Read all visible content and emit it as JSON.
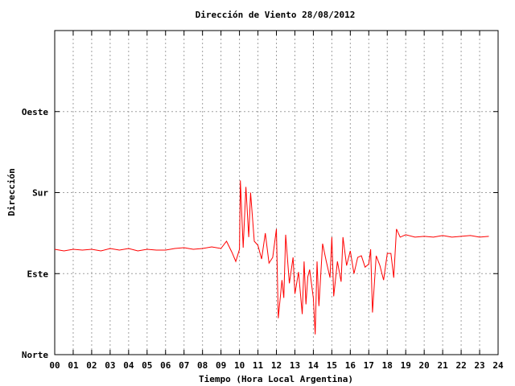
{
  "chart_data": {
    "type": "line",
    "title": "Dirección de Viento 28/08/2012",
    "xlabel": "Tiempo (Hora Local Argentina)",
    "ylabel": "Dirección",
    "xlim": [
      0,
      24
    ],
    "ylim": [
      0,
      400
    ],
    "x_ticks": [
      0,
      1,
      2,
      3,
      4,
      5,
      6,
      7,
      8,
      9,
      10,
      11,
      12,
      13,
      14,
      15,
      16,
      17,
      18,
      19,
      20,
      21,
      22,
      23,
      24
    ],
    "x_tick_labels": [
      "00",
      "01",
      "02",
      "03",
      "04",
      "05",
      "06",
      "07",
      "08",
      "09",
      "10",
      "11",
      "12",
      "13",
      "14",
      "15",
      "16",
      "17",
      "18",
      "19",
      "20",
      "21",
      "22",
      "23",
      "24"
    ],
    "y_ticks": [
      0,
      100,
      200,
      300
    ],
    "y_tick_labels": [
      "Norte",
      "Este",
      "Sur",
      "Oeste"
    ],
    "grid": true,
    "line_color": "#ff0000",
    "series": [
      {
        "x": [
          0.0,
          0.5,
          1.0,
          1.5,
          2.0,
          2.5,
          3.0,
          3.5,
          4.0,
          4.5,
          5.0,
          5.5,
          6.0,
          6.5,
          7.0,
          7.5,
          8.0,
          8.5,
          9.0,
          9.3,
          9.6,
          9.8,
          10.0,
          10.05,
          10.2,
          10.35,
          10.5,
          10.6,
          10.8,
          11.0,
          11.2,
          11.4,
          11.6,
          11.8,
          12.0,
          12.1,
          12.3,
          12.4,
          12.5,
          12.7,
          12.9,
          13.0,
          13.2,
          13.4,
          13.5,
          13.6,
          13.7,
          13.8,
          14.0,
          14.1,
          14.2,
          14.3,
          14.5,
          14.7,
          14.9,
          15.0,
          15.1,
          15.3,
          15.5,
          15.6,
          15.8,
          16.0,
          16.2,
          16.4,
          16.6,
          16.8,
          17.0,
          17.1,
          17.2,
          17.4,
          17.6,
          17.8,
          18.0,
          18.2,
          18.35,
          18.5,
          18.7,
          19.0,
          19.5,
          20.0,
          20.5,
          21.0,
          21.5,
          22.0,
          22.5,
          23.0,
          23.5
        ],
        "y": [
          130,
          128,
          130,
          129,
          130,
          128,
          131,
          129,
          131,
          128,
          130,
          129,
          129,
          131,
          132,
          130,
          131,
          133,
          131,
          140,
          126,
          115,
          130,
          215,
          132,
          207,
          145,
          200,
          140,
          135,
          118,
          150,
          113,
          120,
          155,
          45,
          92,
          70,
          148,
          88,
          120,
          75,
          102,
          50,
          115,
          62,
          96,
          105,
          70,
          25,
          115,
          60,
          137,
          115,
          95,
          145,
          72,
          115,
          90,
          145,
          110,
          128,
          100,
          120,
          122,
          108,
          112,
          130,
          52,
          122,
          110,
          92,
          125,
          125,
          95,
          155,
          145,
          148,
          145,
          146,
          145,
          147,
          145,
          146,
          147,
          145,
          146
        ]
      }
    ]
  }
}
